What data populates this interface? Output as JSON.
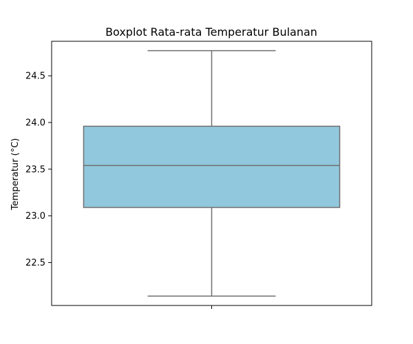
{
  "chart_data": {
    "type": "box",
    "title": "Boxplot Rata-rata Temperatur Bulanan",
    "xlabel": "",
    "ylabel": "Temperatur (°C)",
    "ylim": [
      22.04,
      24.87
    ],
    "yticks": [
      22.5,
      23.0,
      23.5,
      24.0,
      24.5
    ],
    "ytick_labels": [
      "22.5",
      "23.0",
      "23.5",
      "24.0",
      "24.5"
    ],
    "grid": false,
    "box": {
      "whisker_low": 22.14,
      "q1": 23.09,
      "median": 23.54,
      "q3": 23.96,
      "whisker_high": 24.77
    },
    "colors": {
      "box_fill": "#92c8de",
      "line": "#6e6e6e",
      "axis": "#000000"
    }
  }
}
